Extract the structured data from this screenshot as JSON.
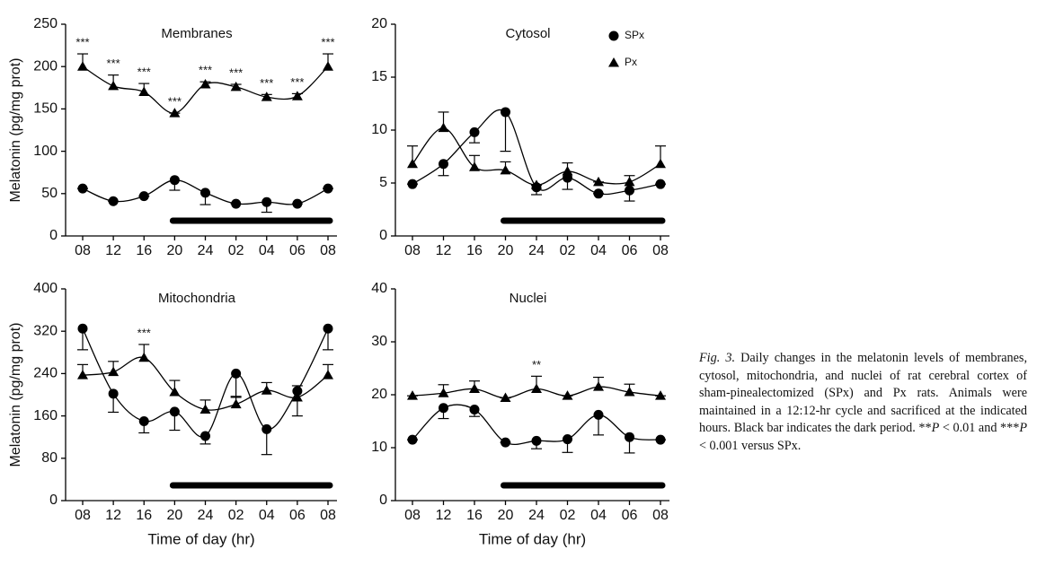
{
  "chart_data": [
    {
      "type": "line",
      "title": "Membranes",
      "ylabel": "Melatonin (pg/mg prot)",
      "categories": [
        "08",
        "12",
        "16",
        "20",
        "24",
        "02",
        "04",
        "06",
        "08"
      ],
      "ylim": [
        0,
        250
      ],
      "yticks": [
        0,
        50,
        100,
        150,
        200,
        250
      ],
      "dark_period": [
        3,
        8
      ],
      "significance": [
        "***",
        "***",
        "***",
        "***",
        "***",
        "***",
        "***",
        "***",
        "***"
      ],
      "series": [
        {
          "name": "SPx",
          "marker": "circle",
          "color": "#000",
          "error_side": "lower",
          "values": [
            56,
            41,
            47,
            66,
            51,
            38,
            40,
            38,
            56
          ],
          "errors": [
            0,
            0,
            0,
            12,
            14,
            0,
            12,
            0,
            0
          ]
        },
        {
          "name": "Px",
          "marker": "triangle",
          "color": "#000",
          "error_side": "upper",
          "values": [
            200,
            177,
            170,
            145,
            179,
            176,
            164,
            165,
            200
          ],
          "errors": [
            15,
            13,
            10,
            0,
            3,
            3,
            3,
            3,
            15
          ]
        }
      ]
    },
    {
      "type": "line",
      "title": "Cytosol",
      "legend": "upper right",
      "categories": [
        "08",
        "12",
        "16",
        "20",
        "24",
        "02",
        "04",
        "06",
        "08"
      ],
      "ylim": [
        0,
        20
      ],
      "yticks": [
        0,
        5,
        10,
        15,
        20
      ],
      "dark_period": [
        3,
        8
      ],
      "series": [
        {
          "name": "SPx",
          "marker": "circle",
          "color": "#000",
          "error_side": "lower",
          "values": [
            4.9,
            6.8,
            9.8,
            11.7,
            4.6,
            5.5,
            4.0,
            4.3,
            4.9
          ],
          "errors": [
            0,
            1.1,
            1.0,
            3.7,
            0.7,
            1.1,
            0,
            1.0,
            0
          ]
        },
        {
          "name": "Px",
          "marker": "triangle",
          "color": "#000",
          "error_side": "upper",
          "values": [
            6.8,
            10.2,
            6.5,
            6.2,
            4.8,
            6.1,
            5.1,
            5.1,
            6.8
          ],
          "errors": [
            1.7,
            1.5,
            1.1,
            0.8,
            0,
            0.8,
            0,
            0.6,
            1.7
          ]
        }
      ]
    },
    {
      "type": "line",
      "title": "Mitochondria",
      "ylabel": "Melatonin (pg/mg prot)",
      "xlabel": "Time of day (hr)",
      "categories": [
        "08",
        "12",
        "16",
        "20",
        "24",
        "02",
        "04",
        "06",
        "08"
      ],
      "ylim": [
        0,
        400
      ],
      "yticks": [
        0,
        80,
        160,
        240,
        320,
        400
      ],
      "dark_period": [
        3,
        8
      ],
      "significance": [
        null,
        null,
        "***",
        null,
        null,
        null,
        null,
        null,
        null
      ],
      "series": [
        {
          "name": "SPx",
          "marker": "circle",
          "color": "#000",
          "error_side": "lower",
          "values": [
            325,
            202,
            150,
            168,
            122,
            240,
            135,
            207,
            325
          ],
          "errors": [
            40,
            35,
            22,
            35,
            15,
            45,
            48,
            47,
            40
          ]
        },
        {
          "name": "Px",
          "marker": "triangle",
          "color": "#000",
          "error_side": "upper",
          "values": [
            237,
            243,
            270,
            205,
            172,
            182,
            208,
            195,
            237
          ],
          "errors": [
            20,
            20,
            25,
            22,
            18,
            15,
            15,
            22,
            20
          ]
        }
      ]
    },
    {
      "type": "line",
      "title": "Nuclei",
      "xlabel": "Time of day (hr)",
      "categories": [
        "08",
        "12",
        "16",
        "20",
        "24",
        "02",
        "04",
        "06",
        "08"
      ],
      "ylim": [
        0,
        40
      ],
      "yticks": [
        0,
        10,
        20,
        30,
        40
      ],
      "dark_period": [
        3,
        8
      ],
      "significance": [
        null,
        null,
        null,
        null,
        "**",
        null,
        null,
        null,
        null
      ],
      "series": [
        {
          "name": "SPx",
          "marker": "circle",
          "color": "#000",
          "error_side": "lower",
          "values": [
            11.5,
            17.5,
            17.2,
            11,
            11.3,
            11.6,
            16.2,
            12,
            11.5
          ],
          "errors": [
            0,
            2,
            1.3,
            0,
            1.5,
            2.5,
            3.8,
            3,
            0
          ]
        },
        {
          "name": "Px",
          "marker": "triangle",
          "color": "#000",
          "error_side": "upper",
          "values": [
            19.8,
            20.3,
            21.1,
            19.4,
            21.1,
            19.8,
            21.5,
            20.5,
            19.8
          ],
          "errors": [
            0,
            1.6,
            1.5,
            0,
            2.4,
            0,
            1.8,
            1.5,
            0
          ]
        }
      ]
    }
  ],
  "caption": [
    {
      "text": "Fig. 3.",
      "italic": true
    },
    {
      "text": " Daily changes in the melatonin levels of membranes, cytosol, mitochondria, and nuclei of rat cerebral cortex of sham-pinealectomized (SPx) and Px rats. Animals were maintained in a 12:12-hr cycle and sacrificed at the indicated hours. Black bar indicates the dark period. **"
    },
    {
      "text": "P",
      "italic": true
    },
    {
      "text": " < 0.01 and ***"
    },
    {
      "text": "P",
      "italic": true
    },
    {
      "text": " < 0.001 versus SPx."
    }
  ]
}
